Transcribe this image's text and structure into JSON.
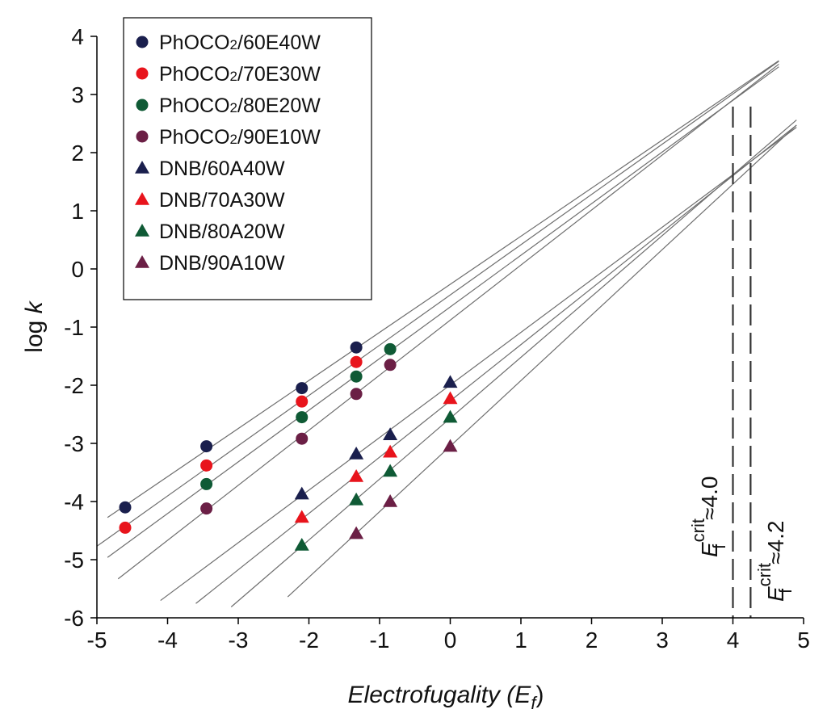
{
  "chart_data": {
    "type": "scatter",
    "xlabel_main": "Electrofugality (",
    "xlabel_sym": "E",
    "xlabel_sub": "f",
    "xlabel_close": ")",
    "ylabel_main": "log ",
    "ylabel_var": "k",
    "xlim": [
      -5,
      5
    ],
    "ylim": [
      -6,
      4
    ],
    "x_ticks": [
      "-5",
      "-4",
      "-3",
      "-2",
      "-1",
      "0",
      "1",
      "2",
      "3",
      "4",
      "5"
    ],
    "y_ticks": [
      "-6",
      "-5",
      "-4",
      "-3",
      "-2",
      "-1",
      "0",
      "1",
      "2",
      "3",
      "4"
    ],
    "grid": false,
    "legend_position": "top-left",
    "series": [
      {
        "name": "PhOCO2/60E40W",
        "marker": "circle",
        "color": "#1a1f4d",
        "x": [
          -4.6,
          -3.45,
          -2.1,
          -1.33
        ],
        "y": [
          -4.1,
          -3.05,
          -2.05,
          -1.35
        ],
        "fit_x": [
          -4.85,
          4.65
        ]
      },
      {
        "name": "PhOCO2/70E30W",
        "marker": "circle",
        "color": "#e8141c",
        "x": [
          -4.6,
          -3.45,
          -2.1,
          -1.33
        ],
        "y": [
          -4.45,
          -3.38,
          -2.28,
          -1.6
        ],
        "fit_x": [
          -5.0,
          4.65
        ]
      },
      {
        "name": "PhOCO2/80E20W",
        "marker": "circle",
        "color": "#0f5a35",
        "x": [
          -3.45,
          -2.1,
          -1.33,
          -0.85
        ],
        "y": [
          -3.7,
          -2.55,
          -1.85,
          -1.38
        ],
        "fit_x": [
          -4.85,
          4.65
        ]
      },
      {
        "name": "PhOCO2/90E10W",
        "marker": "circle",
        "color": "#6b1f45",
        "x": [
          -3.45,
          -2.1,
          -1.33,
          -0.85
        ],
        "y": [
          -4.12,
          -2.92,
          -2.15,
          -1.65
        ],
        "fit_x": [
          -4.7,
          4.65
        ]
      },
      {
        "name": "DNB/60A40W",
        "marker": "triangle",
        "color": "#1a1f4d",
        "x": [
          -2.1,
          -1.33,
          -0.85,
          0
        ],
        "y": [
          -3.87,
          -3.18,
          -2.85,
          -1.95
        ],
        "fit_x": [
          -4.1,
          4.9
        ]
      },
      {
        "name": "DNB/70A30W",
        "marker": "triangle",
        "color": "#e8141c",
        "x": [
          -2.1,
          -1.33,
          -0.85,
          0
        ],
        "y": [
          -4.27,
          -3.57,
          -3.15,
          -2.23
        ],
        "fit_x": [
          -3.6,
          4.9
        ]
      },
      {
        "name": "DNB/80A20W",
        "marker": "triangle",
        "color": "#0f5a35",
        "x": [
          -2.1,
          -1.33,
          -0.85,
          0
        ],
        "y": [
          -4.75,
          -3.97,
          -3.48,
          -2.55
        ],
        "fit_x": [
          -3.1,
          4.9
        ]
      },
      {
        "name": "DNB/90A10W",
        "marker": "triangle",
        "color": "#6b1f45",
        "x": [
          -1.33,
          -0.85,
          0
        ],
        "y": [
          -4.55,
          -4.0,
          -3.05
        ],
        "fit_x": [
          -2.3,
          4.9
        ]
      }
    ],
    "annotations": [
      {
        "x": 4.0,
        "symbol": "E",
        "sup": "crit",
        "sub": "f",
        "relation": "≈",
        "value": "4.0"
      },
      {
        "x": 4.25,
        "symbol": "E",
        "sup": "crit",
        "sub": "f",
        "relation": "≈",
        "value": "4.2"
      }
    ]
  }
}
